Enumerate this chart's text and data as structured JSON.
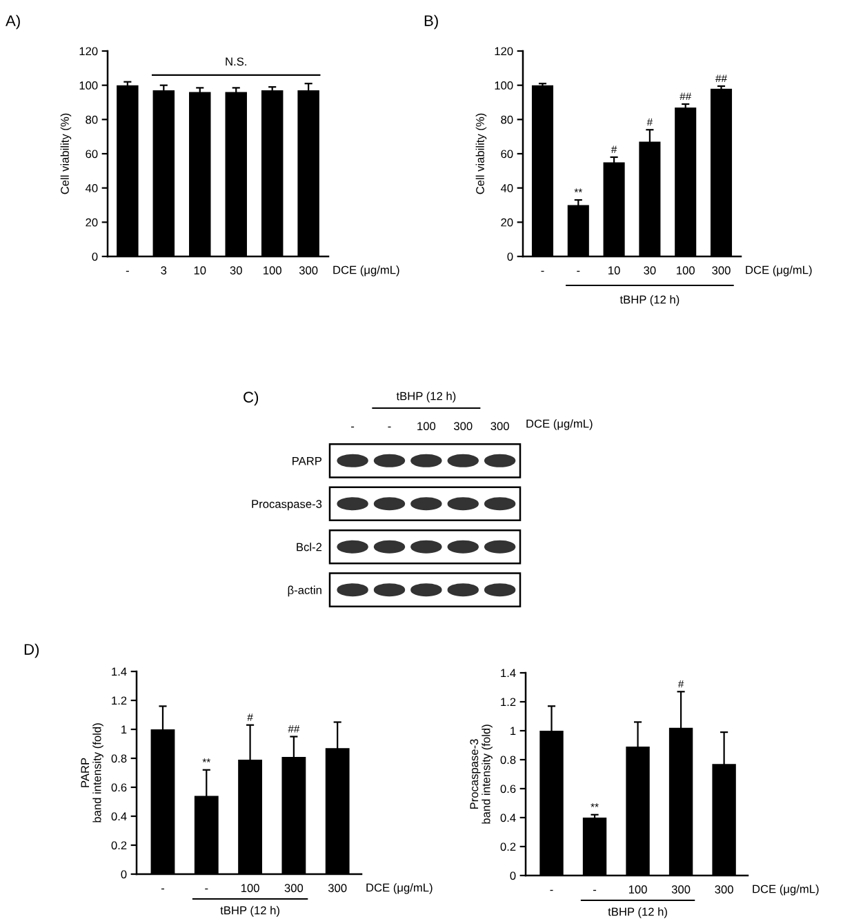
{
  "chart_data": [
    {
      "type": "bar",
      "title": "A)",
      "xlabel": "DCE (μg/mL)",
      "ylabel": "Cell viability (%)",
      "categories": [
        "-",
        "3",
        "10",
        "30",
        "100",
        "300"
      ],
      "values": [
        100,
        97,
        96,
        96,
        97,
        97
      ],
      "errors": [
        2,
        3,
        2.5,
        2.5,
        2,
        4
      ],
      "color": "#000000",
      "ylim": [
        0,
        120
      ],
      "yticks": [
        0,
        20,
        40,
        60,
        80,
        100,
        120
      ],
      "ref_lines": [
        {
          "axis": "y",
          "value": 106,
          "label": "N.S."
        }
      ]
    },
    {
      "type": "bar",
      "title": "B)",
      "xlabel": "DCE (μg/mL)",
      "ylabel": "Cell viability (%)",
      "categories": [
        "-",
        "-",
        "10",
        "30",
        "100",
        "300"
      ],
      "values": [
        100,
        30,
        55,
        67,
        87,
        98
      ],
      "errors": [
        1,
        3,
        3,
        7,
        2,
        1.5
      ],
      "color": "#000000",
      "ylim": [
        0,
        120
      ],
      "yticks": [
        0,
        20,
        40,
        60,
        80,
        100,
        120
      ],
      "annotations": [
        "**",
        "#",
        "#",
        "##",
        "##",
        "tBHP (12 h)"
      ]
    },
    {
      "type": "other",
      "title": "C)",
      "categories": [
        "-",
        "-",
        "100",
        "300",
        "300"
      ],
      "xlabel": "DCE (μg/mL)",
      "y_categories": [
        "PARP",
        "Procaspase-3",
        "Bcl-2",
        "β-actin"
      ],
      "annotations": [
        "tBHP (12 h)"
      ]
    },
    {
      "type": "bar",
      "title": "D)",
      "xlabel": "DCE (μg/mL)",
      "ylabel": "PARP\nband intensity (fold)",
      "categories": [
        "-",
        "-",
        "100",
        "300",
        "300"
      ],
      "values": [
        1,
        0.54,
        0.79,
        0.81,
        0.87
      ],
      "errors": [
        0.16,
        0.18,
        0.24,
        0.14,
        0.18
      ],
      "color": "#000000",
      "ylim": [
        0,
        1.4
      ],
      "yticks": [
        0,
        0.2,
        0.4,
        0.6,
        0.8,
        1,
        1.2,
        1.4
      ],
      "annotations": [
        "**",
        "#",
        "##",
        "tBHP (12 h)"
      ]
    },
    {
      "type": "bar",
      "xlabel": "DCE (μg/mL)",
      "ylabel": "Procaspase-3\nband intensity (fold)",
      "categories": [
        "-",
        "-",
        "100",
        "300",
        "300"
      ],
      "values": [
        1,
        0.4,
        0.89,
        1.02,
        0.77
      ],
      "errors": [
        0.17,
        0.02,
        0.17,
        0.25,
        0.22
      ],
      "color": "#000000",
      "ylim": [
        0,
        1.4
      ],
      "yticks": [
        0,
        0.2,
        0.4,
        0.6,
        0.8,
        1,
        1.2,
        1.4
      ],
      "annotations": [
        "**",
        "#",
        "tBHP (12 h)"
      ]
    }
  ]
}
